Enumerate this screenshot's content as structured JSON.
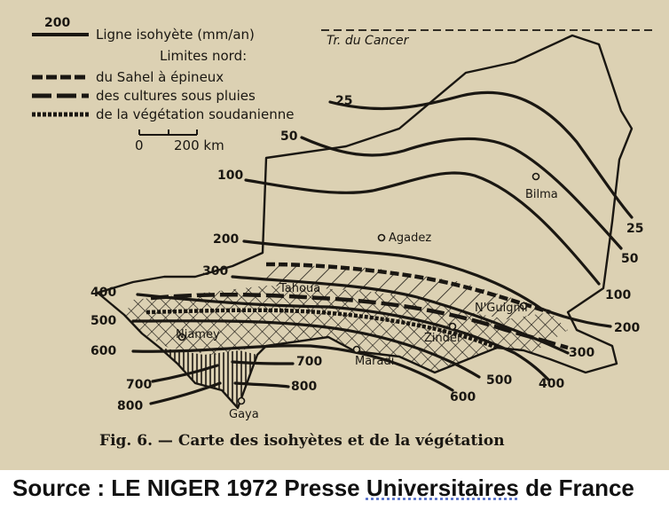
{
  "legend": {
    "isohyet_sample_value": "200",
    "isohyet_line_label": "Ligne isohyète (mm/an)",
    "limits_heading": "Limites nord:",
    "sahel_label": "du Sahel à épineux",
    "crops_label": "des cultures sous pluies",
    "sudanian_label": "de la végétation soudanienne",
    "scale_start": "0",
    "scale_end": "200 km"
  },
  "map": {
    "tropic_label": "Tr. du Cancer",
    "isohyets": {
      "l25_top": "25",
      "l50_top": "50",
      "l100_top": "100",
      "l200_top": "200",
      "l300_top": "300",
      "l400_top": "400",
      "l500_top": "500",
      "l600_top": "600",
      "l700_top": "700",
      "l800_top": "800",
      "l700_inner": "700",
      "l800_inner": "800",
      "l25_right": "25",
      "l50_right": "50",
      "l100_right": "100",
      "l200_right": "200",
      "l300_right": "300",
      "l400_right": "400",
      "l500_right": "500",
      "l600_right": "600"
    },
    "places": {
      "bilma": "Bilma",
      "agadez": "Agadez",
      "tahoua": "Tahoua",
      "nguigmi": "N'Guigmi",
      "niamey": "Niamey",
      "zinder": "Zinder",
      "maradi": "Maradi",
      "gaya": "Gaya"
    }
  },
  "caption": "Fig. 6. — Carte des isohyètes et de la végétation",
  "source": {
    "prefix": "Source : LE NIGER 1972 Presse ",
    "underlined": "Universitaires",
    "suffix": "  de France"
  }
}
